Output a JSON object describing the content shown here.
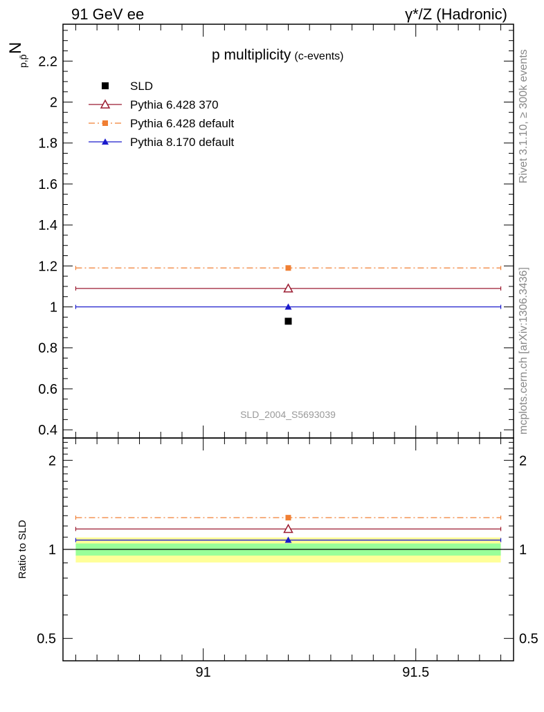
{
  "header": {
    "left": "91 GeV ee",
    "right": "γ*/Z (Hadronic)"
  },
  "side_labels": {
    "rivet": "Rivet 3.1.10, ≥ 300k events",
    "mcplots": "mcplots.cern.ch [arXiv:1306.3436]"
  },
  "watermark": "SLD_2004_S5693039",
  "chart_data": [
    {
      "type": "scatter",
      "title": "p multiplicity",
      "title_suffix": "(c-events)",
      "ylabel_main": "N",
      "ylabel_sub": "p,p̄",
      "xlim": [
        90.67,
        91.73
      ],
      "ylim": [
        0.36,
        2.38
      ],
      "yticks": [
        0.4,
        0.6,
        0.8,
        1.0,
        1.2,
        1.4,
        1.6,
        1.8,
        2.0,
        2.2
      ],
      "ytick_labels": [
        "0.4",
        "0.6",
        "0.8",
        "1",
        "1.2",
        "1.4",
        "1.6",
        "1.8",
        "2",
        "2.2"
      ],
      "bin": [
        90.7,
        91.7
      ],
      "legend_position": "top-left",
      "series": [
        {
          "name": "SLD",
          "marker": "square",
          "color": "#000000",
          "x": 91.2,
          "y": 0.93
        },
        {
          "name": "Pythia 6.428 370",
          "marker": "open-triangle",
          "color": "#9b1b30",
          "line": "solid",
          "x": 91.2,
          "y": 1.09
        },
        {
          "name": "Pythia 6.428 default",
          "marker": "square-small",
          "color": "#f07f33",
          "line": "dashdot",
          "x": 91.2,
          "y": 1.19
        },
        {
          "name": "Pythia 8.170 default",
          "marker": "triangle",
          "color": "#1a1acc",
          "line": "solid",
          "x": 91.2,
          "y": 1.0
        }
      ]
    },
    {
      "type": "scatter",
      "ylabel": "Ratio to SLD",
      "log_scale_y": true,
      "xlim": [
        90.67,
        91.73
      ],
      "ylim": [
        0.42,
        2.38
      ],
      "yticks": [
        0.5,
        1,
        2
      ],
      "ytick_labels": [
        "0.5",
        "1",
        "2"
      ],
      "xticks": [
        91,
        91.5
      ],
      "xtick_labels": [
        "91",
        "91.5"
      ],
      "band_colors": {
        "outer": "#ffff99",
        "inner": "#99ff99"
      },
      "bands": {
        "outer": [
          0.903,
          1.097
        ],
        "inner": [
          0.953,
          1.047
        ]
      },
      "series": [
        {
          "name": "Pythia 6.428 370",
          "x": 91.2,
          "y": 1.172
        },
        {
          "name": "Pythia 6.428 default",
          "x": 91.2,
          "y": 1.28
        },
        {
          "name": "Pythia 8.170 default",
          "x": 91.2,
          "y": 1.075
        }
      ]
    }
  ]
}
